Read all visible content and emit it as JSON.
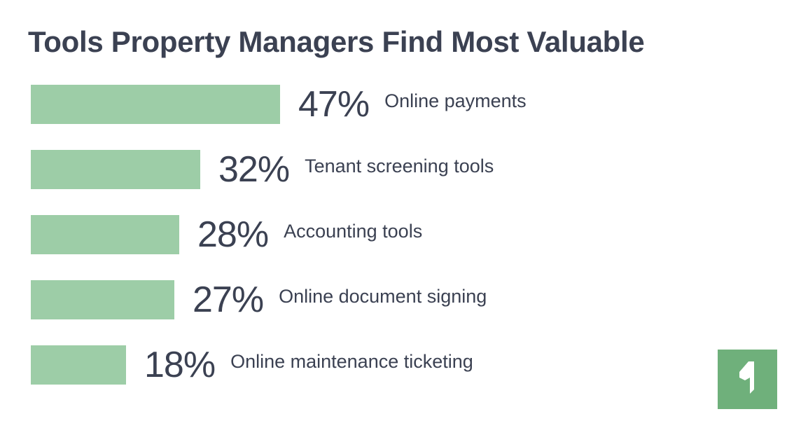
{
  "colors": {
    "bar": "#9dcda7",
    "text": "#3b4152",
    "logo_bg": "#6fb07b",
    "logo_fg": "#ffffff"
  },
  "logo": {
    "icon": "brand-logo-icon"
  },
  "chart_data": {
    "type": "bar",
    "orientation": "horizontal",
    "title": "Tools Property Managers Find Most Valuable",
    "xlabel": "",
    "ylabel": "",
    "xlim": [
      0,
      100
    ],
    "grid": false,
    "legend": "none",
    "categories": [
      "Online payments",
      "Tenant screening tools",
      "Accounting tools",
      "Online document signing",
      "Online maintenance ticketing"
    ],
    "values": [
      47,
      32,
      28,
      27,
      18
    ],
    "value_labels": [
      "47%",
      "32%",
      "28%",
      "27%",
      "18%"
    ]
  }
}
